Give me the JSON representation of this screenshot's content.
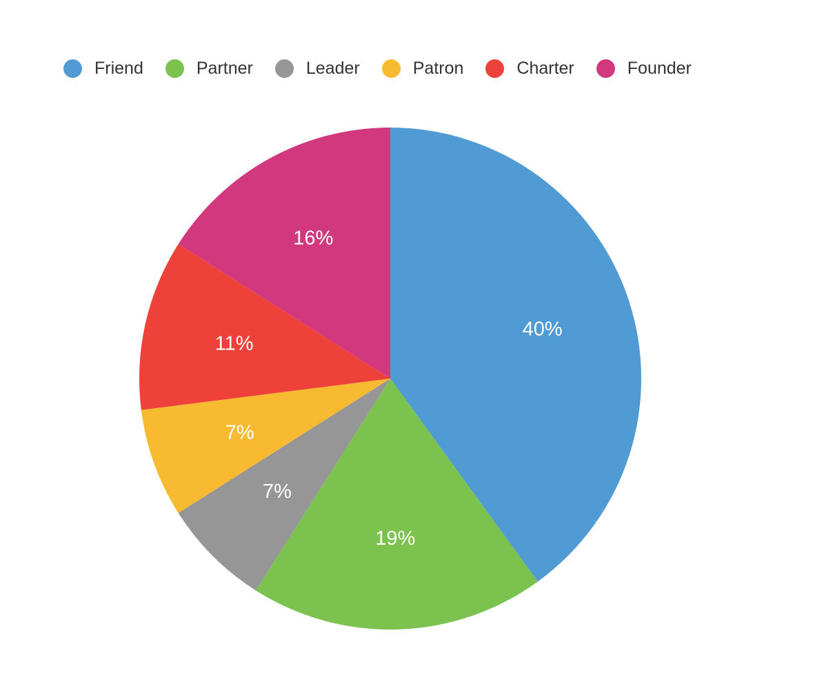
{
  "chart_data": {
    "type": "pie",
    "legend_position": "top-left",
    "slices": [
      {
        "name": "Friend",
        "value": 40,
        "label": "40%",
        "color": "#519BD4"
      },
      {
        "name": "Partner",
        "value": 19,
        "label": "19%",
        "color": "#7BC24F"
      },
      {
        "name": "Leader",
        "value": 7,
        "label": "7%",
        "color": "#969696"
      },
      {
        "name": "Patron",
        "value": 7,
        "label": "7%",
        "color": "#F7BA30"
      },
      {
        "name": "Charter",
        "value": 11,
        "label": "11%",
        "color": "#EE4139"
      },
      {
        "name": "Founder",
        "value": 16,
        "label": "16%",
        "color": "#D2387D"
      }
    ]
  }
}
